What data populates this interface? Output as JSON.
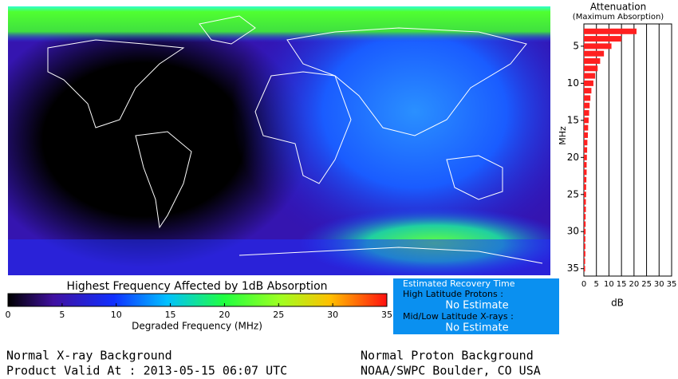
{
  "colorbar": {
    "title": "Highest Frequency Affected by 1dB Absorption",
    "label": "Degraded Frequency (MHz)",
    "lim": [
      0,
      35
    ],
    "ticks": [
      0,
      5,
      10,
      15,
      20,
      25,
      30,
      35
    ]
  },
  "recovery": {
    "title": "Estimated Recovery Time",
    "protons_label": "High Latitude Protons :",
    "protons_value": "No Estimate",
    "xrays_label": "Mid/Low Latitude X-rays :",
    "xrays_value": "No Estimate"
  },
  "footer": {
    "xray_status": "Normal X-ray Background",
    "valid_at": "Product Valid At : 2013-05-15 06:07 UTC",
    "proton_status": "Normal Proton Background",
    "source": "NOAA/SWPC Boulder, CO USA"
  },
  "chart_data": {
    "type": "hbar",
    "title": "Attenuation",
    "subtitle": "(Maximum Absorption)",
    "xlabel": "dB",
    "ylabel": "MHz",
    "color": "#ff2020",
    "x": [
      3,
      4,
      5,
      6,
      7,
      8,
      9,
      10,
      11,
      12,
      13,
      14,
      15,
      16,
      17,
      18,
      19,
      20,
      21,
      22,
      23,
      24,
      25,
      26,
      27,
      28,
      29,
      30,
      31,
      32,
      33,
      34,
      35
    ],
    "values": [
      21,
      15,
      11,
      8,
      6.5,
      5.5,
      4.5,
      3.8,
      3,
      2.6,
      2.3,
      2.1,
      1.9,
      1.7,
      1.6,
      1.4,
      1.3,
      1.2,
      1.1,
      1.1,
      1,
      0.9,
      0.9,
      0.8,
      0.8,
      0.7,
      0.7,
      0.7,
      0.6,
      0.6,
      0.6,
      0.5,
      0.5
    ],
    "xlim": [
      0,
      35
    ],
    "xticks": [
      0,
      5,
      10,
      15,
      20,
      25,
      30,
      35
    ],
    "ylim": [
      2,
      36
    ],
    "yticks": [
      5,
      10,
      15,
      20,
      25,
      30,
      35
    ],
    "grid": true
  }
}
